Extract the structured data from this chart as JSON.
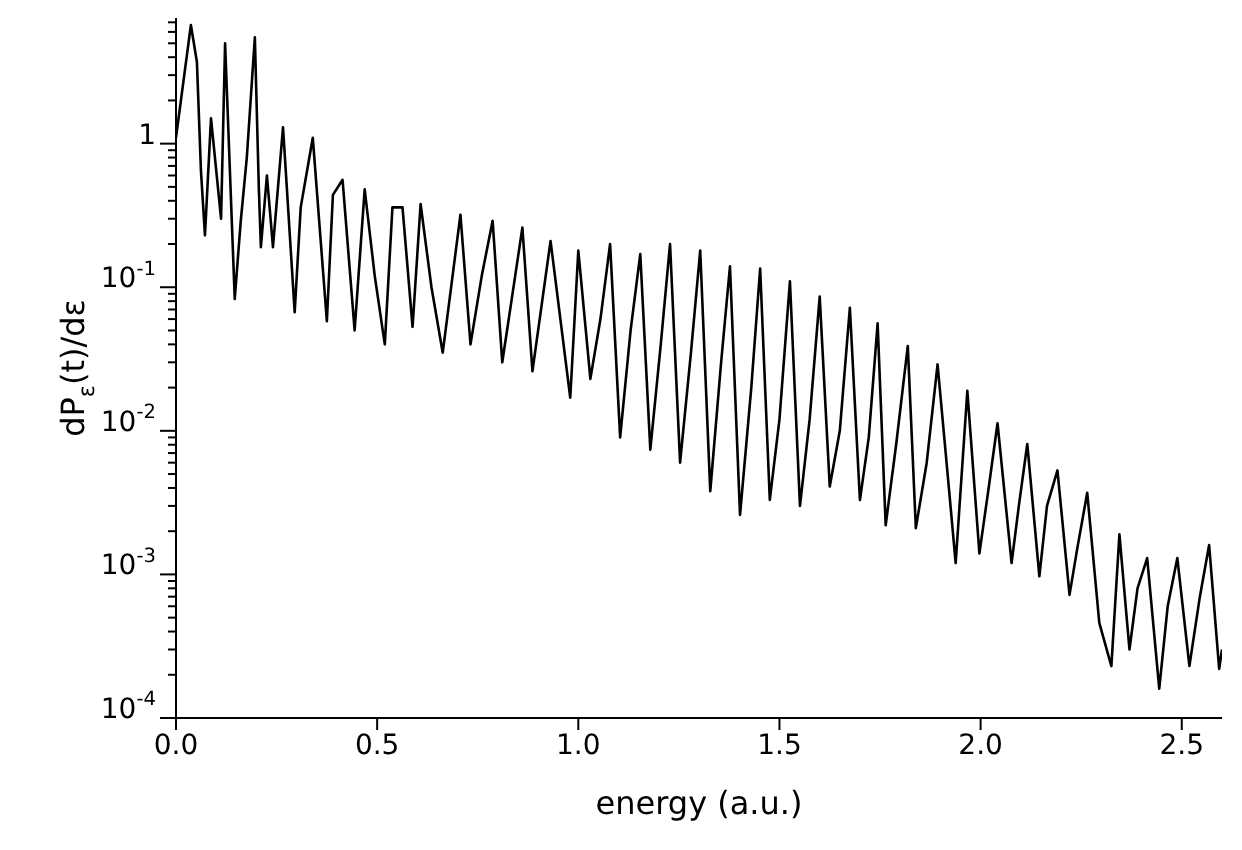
{
  "chart_data": {
    "type": "line",
    "xlabel": "energy (a.u.)",
    "ylabel": "dP$_{ε}$(t)/dε",
    "log": "y",
    "marker": "none",
    "xlim": [
      0,
      2.6
    ],
    "xticks": [
      {
        "value": 0,
        "label": "0.0"
      },
      {
        "value": 0.5,
        "label": "0.5"
      },
      {
        "value": 1,
        "label": "1.0"
      },
      {
        "value": 1.5,
        "label": "1.5"
      },
      {
        "value": 2,
        "label": "2.0"
      },
      {
        "value": 2.5,
        "label": "2.5"
      }
    ],
    "ylim": [
      0.0001,
      7.5
    ],
    "yticks": [
      {
        "value": 0.0001,
        "label": "10$^{-4}$"
      },
      {
        "value": 0.0002,
        "label": null
      },
      {
        "value": 0.0003,
        "label": null
      },
      {
        "value": 0.0004,
        "label": null
      },
      {
        "value": 0.0005,
        "label": null
      },
      {
        "value": 0.0006,
        "label": null
      },
      {
        "value": 0.0007,
        "label": null
      },
      {
        "value": 0.0008,
        "label": null
      },
      {
        "value": 0.0009,
        "label": null
      },
      {
        "value": 0.001,
        "label": "10$^{-3}$"
      },
      {
        "value": 0.002,
        "label": null
      },
      {
        "value": 0.003,
        "label": null
      },
      {
        "value": 0.004,
        "label": null
      },
      {
        "value": 0.005,
        "label": null
      },
      {
        "value": 0.006,
        "label": null
      },
      {
        "value": 0.007,
        "label": null
      },
      {
        "value": 0.008,
        "label": null
      },
      {
        "value": 0.009,
        "label": null
      },
      {
        "value": 0.01,
        "label": "10$^{-2}$"
      },
      {
        "value": 0.02,
        "label": null
      },
      {
        "value": 0.03,
        "label": null
      },
      {
        "value": 0.04,
        "label": null
      },
      {
        "value": 0.05,
        "label": null
      },
      {
        "value": 0.06,
        "label": null
      },
      {
        "value": 0.07,
        "label": null
      },
      {
        "value": 0.08,
        "label": null
      },
      {
        "value": 0.09,
        "label": null
      },
      {
        "value": 0.1,
        "label": "10$^{-1}$"
      },
      {
        "value": 0.2,
        "label": null
      },
      {
        "value": 0.3,
        "label": null
      },
      {
        "value": 0.4,
        "label": null
      },
      {
        "value": 0.5,
        "label": null
      },
      {
        "value": 0.6,
        "label": null
      },
      {
        "value": 0.7,
        "label": null
      },
      {
        "value": 0.8,
        "label": null
      },
      {
        "value": 0.9,
        "label": null
      },
      {
        "value": 1,
        "label": "1"
      },
      {
        "value": 2,
        "label": null
      },
      {
        "value": 3,
        "label": null
      },
      {
        "value": 4,
        "label": null
      },
      {
        "value": 5,
        "label": null
      },
      {
        "value": 6,
        "label": null
      },
      {
        "value": 7,
        "label": null
      }
    ],
    "series": [
      {
        "color": "#000000",
        "x": [
          0,
          0.037,
          0.052,
          0.062,
          0.072,
          0.087,
          0.112,
          0.122,
          0.146,
          0.161,
          0.176,
          0.196,
          0.206,
          0.211,
          0.226,
          0.241,
          0.266,
          0.295,
          0.31,
          0.34,
          0.375,
          0.39,
          0.414,
          0.444,
          0.469,
          0.494,
          0.519,
          0.538,
          0.563,
          0.588,
          0.608,
          0.635,
          0.663,
          0.707,
          0.732,
          0.76,
          0.787,
          0.811,
          0.861,
          0.886,
          0.931,
          0.98,
          1.0,
          1.03,
          1.055,
          1.079,
          1.104,
          1.13,
          1.154,
          1.179,
          1.205,
          1.228,
          1.253,
          1.28,
          1.303,
          1.328,
          1.355,
          1.377,
          1.402,
          1.43,
          1.452,
          1.476,
          1.5,
          1.526,
          1.551,
          1.575,
          1.6,
          1.625,
          1.65,
          1.675,
          1.7,
          1.722,
          1.744,
          1.764,
          1.79,
          1.819,
          1.839,
          1.866,
          1.893,
          1.918,
          1.938,
          1.967,
          1.997,
          2.02,
          2.042,
          2.077,
          2.095,
          2.116,
          2.146,
          2.165,
          2.191,
          2.221,
          2.24,
          2.265,
          2.295,
          2.325,
          2.345,
          2.37,
          2.39,
          2.414,
          2.444,
          2.465,
          2.489,
          2.519,
          2.545,
          2.568,
          2.593,
          2.6
        ],
        "values": [
          1.1,
          6.7,
          3.7,
          0.65,
          0.23,
          1.5,
          0.3,
          5.0,
          0.083,
          0.29,
          0.8,
          5.5,
          0.48,
          0.19,
          0.6,
          0.19,
          1.3,
          0.067,
          0.36,
          1.1,
          0.058,
          0.44,
          0.56,
          0.05,
          0.48,
          0.12,
          0.04,
          0.36,
          0.36,
          0.053,
          0.38,
          0.1,
          0.035,
          0.32,
          0.04,
          0.12,
          0.29,
          0.03,
          0.26,
          0.026,
          0.21,
          0.017,
          0.18,
          0.023,
          0.06,
          0.2,
          0.009,
          0.05,
          0.17,
          0.0074,
          0.04,
          0.2,
          0.006,
          0.035,
          0.18,
          0.0038,
          0.03,
          0.14,
          0.0026,
          0.02,
          0.135,
          0.0033,
          0.012,
          0.11,
          0.003,
          0.012,
          0.086,
          0.0041,
          0.01,
          0.072,
          0.0033,
          0.009,
          0.056,
          0.0022,
          0.008,
          0.039,
          0.0021,
          0.006,
          0.029,
          0.005,
          0.0012,
          0.019,
          0.0014,
          0.004,
          0.0113,
          0.0012,
          0.003,
          0.0081,
          0.00097,
          0.003,
          0.0053,
          0.00072,
          0.0015,
          0.0037,
          0.00046,
          0.00023,
          0.0019,
          0.0003,
          0.0008,
          0.0013,
          0.00016,
          0.0006,
          0.0013,
          0.00023,
          0.0007,
          0.0016,
          0.00022,
          0.0003
        ]
      }
    ]
  }
}
